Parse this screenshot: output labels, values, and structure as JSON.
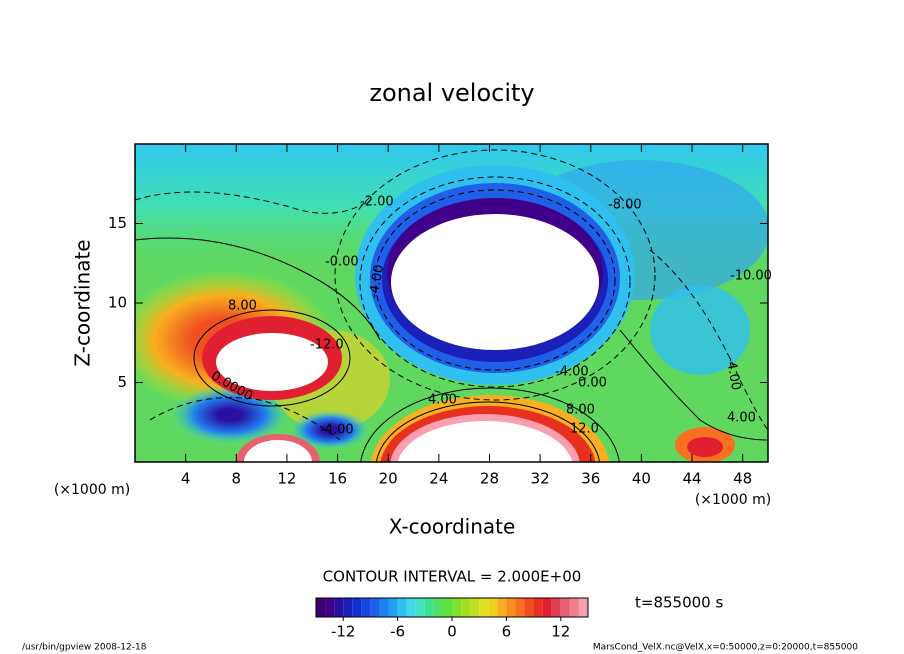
{
  "chart_data": {
    "type": "contour",
    "title": "zonal velocity",
    "x_label": "X-coordinate",
    "y_label": "Z-coordinate",
    "x_unit": "(×1000 m)",
    "xlim": [
      0,
      50
    ],
    "ylim": [
      0,
      20
    ],
    "xticks": [
      4,
      8,
      12,
      16,
      20,
      24,
      28,
      32,
      36,
      40,
      44,
      48
    ],
    "yticks": [
      5,
      10,
      15
    ],
    "contour_interval": "CONTOUR INTERVAL = 2.000E+00",
    "contour_labels": [
      "-8.00",
      "-2.00",
      "-0.00",
      "-10.00",
      "8.00",
      "-12.0",
      "-4.00",
      "-4.00",
      "0.00",
      "4.00",
      "8.00",
      "12.0",
      "4.00",
      "-4.00",
      "-4.00",
      "0.0000"
    ],
    "time_label": "t=855000 s",
    "colorbar": {
      "levels": [
        -15,
        -14,
        -13,
        -12,
        -11,
        -10,
        -9,
        -8,
        -7,
        -6,
        -5,
        -4,
        -3,
        -2,
        -1,
        0,
        1,
        2,
        3,
        4,
        5,
        6,
        7,
        8,
        9,
        10,
        11,
        12,
        13,
        14,
        15
      ],
      "colors": [
        "#3a0070",
        "#40008a",
        "#2a10a0",
        "#1a20b8",
        "#1030d0",
        "#1848e0",
        "#2060e8",
        "#2080f0",
        "#20a0f0",
        "#30c0f0",
        "#40d8e8",
        "#40e0c0",
        "#40e090",
        "#50e060",
        "#60e040",
        "#80e030",
        "#a0e020",
        "#c0e020",
        "#e0e020",
        "#f0d020",
        "#f8b020",
        "#f89020",
        "#f87020",
        "#f05020",
        "#e83020",
        "#e02030",
        "#e04050",
        "#e86070",
        "#f08090",
        "#f8a0b0"
      ],
      "ticks": [
        -12,
        -6,
        0,
        6,
        12
      ]
    },
    "footer_left": "/usr/bin/gpview  2008-12-18",
    "footer_right": "MarsCond_VelX.nc@VelX,x=0:50000,z=0:20000,t=855000"
  }
}
